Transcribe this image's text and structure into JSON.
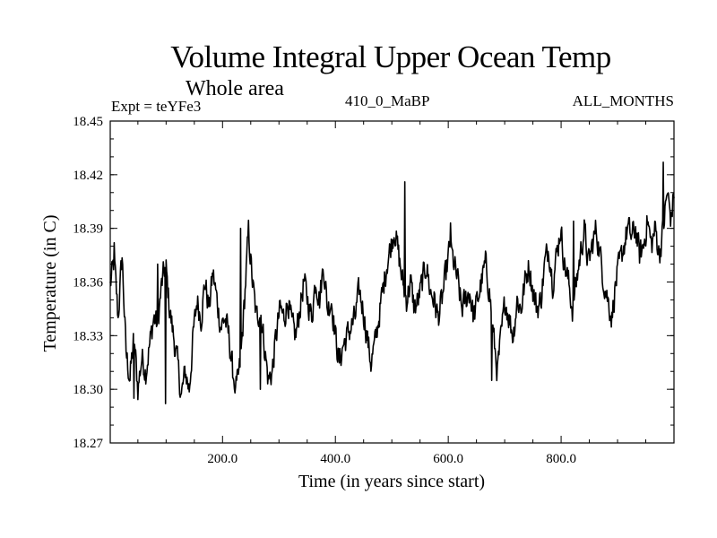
{
  "chart_data": {
    "type": "line",
    "title": "Volume Integral Upper Ocean Temp",
    "subtitle": "Whole area",
    "header_left": "Expt = teYFe3",
    "header_center": "410_0_MaBP",
    "header_right": "ALL_MONTHS",
    "xlabel": "Time (in years since start)",
    "ylabel": "Temperature (in C)",
    "xlim": [
      1,
      1000
    ],
    "ylim": [
      18.27,
      18.45
    ],
    "xticks": [
      200,
      400,
      600,
      800
    ],
    "xtick_labels": [
      "200.0",
      "400.0",
      "600.0",
      "800.0"
    ],
    "yticks": [
      18.27,
      18.3,
      18.33,
      18.36,
      18.39,
      18.42,
      18.45
    ],
    "ytick_labels": [
      "18.27",
      "18.30",
      "18.33",
      "18.36",
      "18.39",
      "18.42",
      "18.45"
    ],
    "series": [
      {
        "name": "Temperature",
        "color": "#000000",
        "x": [
          1,
          8,
          15,
          22,
          29,
          36,
          43,
          50,
          57,
          64,
          71,
          78,
          85,
          92,
          99,
          106,
          113,
          120,
          127,
          134,
          141,
          148,
          155,
          162,
          169,
          176,
          183,
          190,
          197,
          204,
          211,
          218,
          225,
          232,
          239,
          246,
          253,
          260,
          267,
          274,
          281,
          288,
          295,
          302,
          309,
          316,
          323,
          330,
          337,
          344,
          351,
          358,
          365,
          372,
          379,
          386,
          393,
          400,
          407,
          414,
          421,
          428,
          435,
          442,
          449,
          456,
          463,
          470,
          477,
          484,
          491,
          498,
          505,
          512,
          519,
          526,
          533,
          540,
          547,
          554,
          561,
          568,
          575,
          582,
          589,
          596,
          603,
          610,
          617,
          624,
          631,
          638,
          645,
          652,
          659,
          666,
          673,
          680,
          687,
          694,
          701,
          708,
          715,
          722,
          729,
          736,
          743,
          750,
          757,
          764,
          771,
          778,
          785,
          792,
          799,
          806,
          813,
          820,
          827,
          834,
          841,
          848,
          855,
          862,
          869,
          876,
          883,
          890,
          897,
          904,
          911,
          918,
          925,
          932,
          939,
          946,
          953,
          960,
          967,
          974,
          981,
          988,
          995,
          1000
        ],
        "y": [
          18.358,
          18.372,
          18.34,
          18.375,
          18.32,
          18.306,
          18.33,
          18.3,
          18.318,
          18.31,
          18.325,
          18.34,
          18.336,
          18.358,
          18.37,
          18.345,
          18.33,
          18.315,
          18.296,
          18.31,
          18.3,
          18.33,
          18.35,
          18.34,
          18.36,
          18.345,
          18.365,
          18.35,
          18.335,
          18.34,
          18.33,
          18.31,
          18.3,
          18.315,
          18.35,
          18.388,
          18.36,
          18.34,
          18.345,
          18.325,
          18.305,
          18.31,
          18.33,
          18.345,
          18.34,
          18.35,
          18.335,
          18.33,
          18.345,
          18.36,
          18.35,
          18.34,
          18.362,
          18.35,
          18.37,
          18.345,
          18.35,
          18.33,
          18.315,
          18.325,
          18.33,
          18.335,
          18.34,
          18.355,
          18.345,
          18.33,
          18.315,
          18.325,
          18.34,
          18.355,
          18.37,
          18.38,
          18.39,
          18.375,
          18.36,
          18.35,
          18.36,
          18.345,
          18.35,
          18.36,
          18.37,
          18.355,
          18.35,
          18.34,
          18.35,
          18.365,
          18.38,
          18.37,
          18.36,
          18.345,
          18.35,
          18.355,
          18.34,
          18.35,
          18.36,
          18.37,
          18.355,
          18.33,
          18.31,
          18.33,
          18.35,
          18.34,
          18.33,
          18.35,
          18.345,
          18.36,
          18.37,
          18.355,
          18.345,
          18.35,
          18.37,
          18.38,
          18.36,
          18.375,
          18.39,
          18.37,
          18.36,
          18.345,
          18.36,
          18.375,
          18.39,
          18.37,
          18.38,
          18.39,
          18.375,
          18.36,
          18.35,
          18.34,
          18.36,
          18.37,
          18.38,
          18.39,
          18.385,
          18.39,
          18.375,
          18.38,
          18.395,
          18.38,
          18.39,
          18.375,
          18.39,
          18.41,
          18.395,
          18.41
        ],
        "min_points": [
          [
            43,
            18.295
          ],
          [
            99,
            18.292
          ],
          [
            222,
            18.298
          ],
          [
            267,
            18.3
          ],
          [
            677,
            18.305
          ]
        ],
        "max_points": [
          [
            8,
            18.382
          ],
          [
            85,
            18.37
          ],
          [
            232,
            18.39
          ],
          [
            523,
            18.416
          ],
          [
            604,
            18.393
          ],
          [
            822,
            18.394
          ],
          [
            981,
            18.427
          ]
        ]
      }
    ]
  }
}
